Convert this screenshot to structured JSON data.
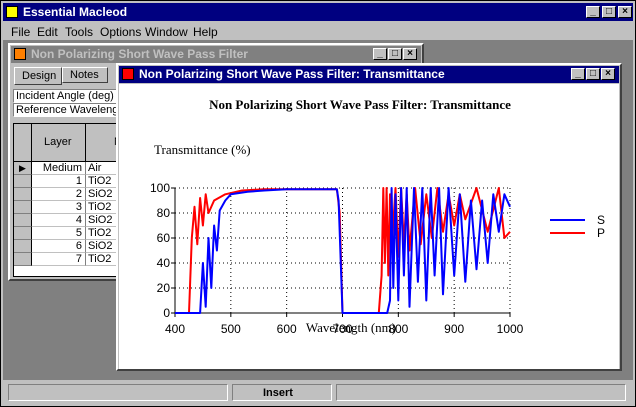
{
  "app": {
    "title": "Essential Macleod",
    "menu": [
      "File",
      "Edit",
      "Tools",
      "Options",
      "Window",
      "Help"
    ]
  },
  "design_window": {
    "title": "Non Polarizing Short Wave Pass Filter",
    "tabs": [
      "Design",
      "Notes"
    ],
    "fields": [
      "Incident Angle (deg)",
      "Reference Wavelength"
    ],
    "columns": [
      "Layer",
      "M"
    ],
    "rows": [
      {
        "layer": "Medium",
        "material": "Air"
      },
      {
        "layer": "1",
        "material": "TiO2"
      },
      {
        "layer": "2",
        "material": "SiO2"
      },
      {
        "layer": "3",
        "material": "TiO2"
      },
      {
        "layer": "4",
        "material": "SiO2"
      },
      {
        "layer": "5",
        "material": "TiO2"
      },
      {
        "layer": "6",
        "material": "SiO2"
      },
      {
        "layer": "7",
        "material": "TiO2"
      }
    ]
  },
  "plot_window": {
    "title": "Non Polarizing Short Wave Pass Filter: Transmittance"
  },
  "status": {
    "mode": "Insert"
  },
  "colors": {
    "s": "#0000ff",
    "p": "#ff0000",
    "title_active": "#000080"
  },
  "chart_data": {
    "type": "line",
    "title": "Non Polarizing Short Wave Pass Filter: Transmittance",
    "ylabel": "Transmittance (%)",
    "xlabel": "Wavelength (nm)",
    "xlim": [
      400,
      1000
    ],
    "ylim": [
      0,
      100
    ],
    "xticks": [
      400,
      500,
      600,
      700,
      800,
      900,
      1000
    ],
    "yticks": [
      0,
      20,
      40,
      60,
      80,
      100
    ],
    "grid": true,
    "legend": "right",
    "series": [
      {
        "name": "S",
        "color": "#0000ff",
        "x": [
          400,
          445,
          450,
          455,
          460,
          465,
          470,
          475,
          480,
          490,
          500,
          530,
          560,
          600,
          650,
          690,
          693,
          700,
          780,
          785,
          788,
          791,
          795,
          800,
          805,
          810,
          815,
          820,
          828,
          835,
          843,
          850,
          858,
          865,
          873,
          880,
          890,
          900,
          910,
          920,
          930,
          940,
          950,
          960,
          970,
          980,
          990,
          1000
        ],
        "values": [
          0,
          0,
          40,
          5,
          60,
          20,
          70,
          50,
          82,
          90,
          95,
          97,
          98,
          99,
          99,
          99,
          90,
          0,
          0,
          10,
          100,
          20,
          95,
          10,
          100,
          30,
          100,
          5,
          100,
          25,
          100,
          10,
          100,
          30,
          100,
          15,
          100,
          30,
          95,
          25,
          90,
          35,
          90,
          40,
          95,
          65,
          95,
          85
        ]
      },
      {
        "name": "P",
        "color": "#ff0000",
        "x": [
          400,
          425,
          430,
          435,
          440,
          445,
          450,
          455,
          460,
          470,
          490,
          520,
          560,
          600,
          650,
          690,
          695,
          700,
          765,
          770,
          773,
          776,
          779,
          782,
          785,
          788,
          795,
          800,
          805,
          810,
          815,
          820,
          830,
          840,
          850,
          860,
          870,
          880,
          890,
          900,
          910,
          920,
          940,
          960,
          980,
          990,
          1000
        ],
        "values": [
          0,
          0,
          60,
          85,
          55,
          92,
          70,
          95,
          80,
          90,
          95,
          98,
          99,
          99,
          99,
          99,
          80,
          0,
          0,
          30,
          100,
          40,
          100,
          30,
          95,
          50,
          100,
          45,
          100,
          55,
          95,
          50,
          100,
          55,
          95,
          60,
          100,
          65,
          95,
          70,
          95,
          75,
          100,
          65,
          100,
          60,
          65
        ]
      }
    ]
  }
}
